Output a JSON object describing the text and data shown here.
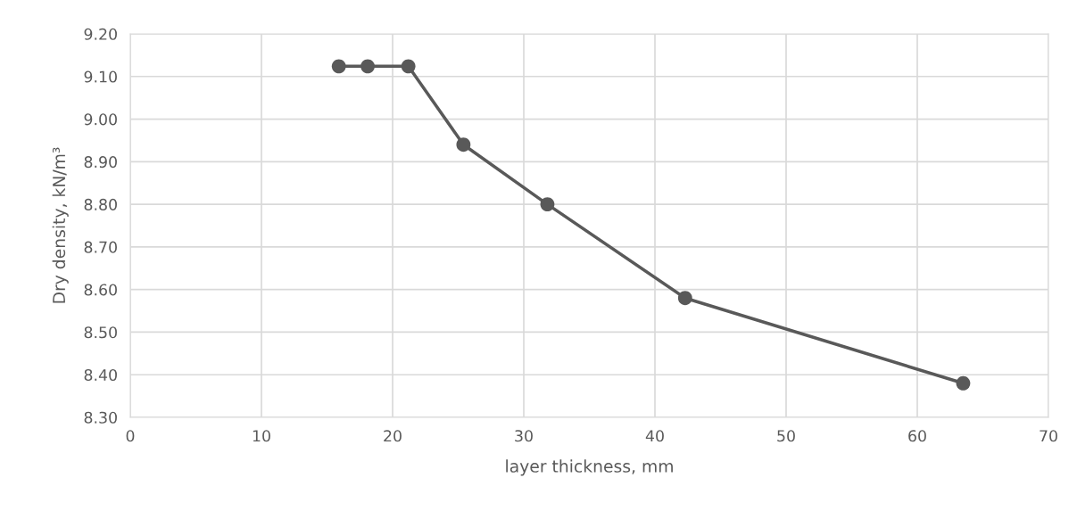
{
  "chart_data": {
    "type": "line",
    "xlabel": "layer thickness, mm",
    "ylabel": "Dry density, kN/m³",
    "series": [
      {
        "color": "#595959",
        "x": [
          15.9,
          18.1,
          21.2,
          25.4,
          31.8,
          42.3,
          63.5
        ],
        "values": [
          9.124,
          9.124,
          9.124,
          8.94,
          8.8,
          8.58,
          8.38
        ]
      }
    ],
    "xlim": [
      0,
      70
    ],
    "xticks": [
      0,
      10,
      20,
      30,
      40,
      50,
      60,
      70
    ],
    "ylim": [
      8.3,
      9.2
    ],
    "yticks": [
      {
        "value": 8.3,
        "label": "8.30"
      },
      {
        "value": 8.4,
        "label": "8.40"
      },
      {
        "value": 8.5,
        "label": "8.50"
      },
      {
        "value": 8.6,
        "label": "8.60"
      },
      {
        "value": 8.7,
        "label": "8.70"
      },
      {
        "value": 8.8,
        "label": "8.80"
      },
      {
        "value": 8.9,
        "label": "8.90"
      },
      {
        "value": 9.0,
        "label": "9.00"
      },
      {
        "value": 9.1,
        "label": "9.10"
      },
      {
        "value": 9.2,
        "label": "9.20"
      }
    ],
    "grid": true,
    "marker": "circle",
    "line_style": "solid",
    "legend": false
  }
}
